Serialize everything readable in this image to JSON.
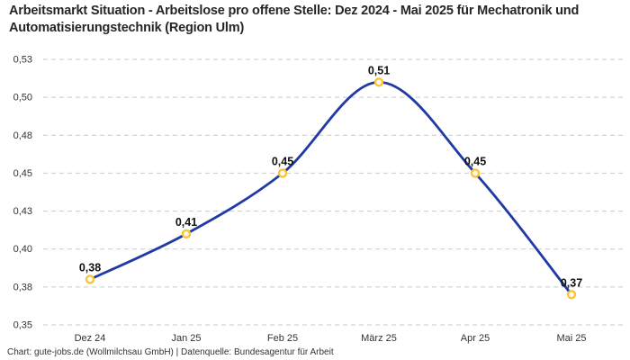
{
  "header": {
    "title": "Arbeitsmarkt Situation - Arbeitslose pro offene Stelle: Dez 2024 - Mai 2025 für Mechatronik und Automatisierungstechnik (Region Ulm)"
  },
  "footer": {
    "credit": "Chart: gute-jobs.de (Wollmilchsau GmbH) | Datenquelle: Bundesagentur für Arbeit"
  },
  "colors": {
    "line": "#1f3aa5",
    "marker_stroke": "#fdc331",
    "marker_fill": "#ffffff",
    "grid": "#c9c9c9",
    "axis_text": "#333333",
    "point_label_text": "#111111",
    "title_text": "#262626",
    "background": "#ffffff"
  },
  "chart_data": {
    "type": "line",
    "title": "Arbeitsmarkt Situation - Arbeitslose pro offene Stelle: Dez 2024 - Mai 2025 für Mechatronik und Automatisierungstechnik (Region Ulm)",
    "xlabel": "",
    "ylabel": "",
    "categories": [
      "Dez 24",
      "Jan 25",
      "Feb 25",
      "März 25",
      "Apr 25",
      "Mai 25"
    ],
    "values": [
      0.38,
      0.41,
      0.45,
      0.51,
      0.45,
      0.37
    ],
    "point_labels": [
      "0,38",
      "0,41",
      "0,45",
      "0,51",
      "0,45",
      "0,37"
    ],
    "ylim": [
      0.35,
      0.525
    ],
    "y_ticks": [
      {
        "value": 0.525,
        "label": "0,53"
      },
      {
        "value": 0.5,
        "label": "0,50"
      },
      {
        "value": 0.475,
        "label": "0,48"
      },
      {
        "value": 0.45,
        "label": "0,45"
      },
      {
        "value": 0.425,
        "label": "0,43"
      },
      {
        "value": 0.4,
        "label": "0,40"
      },
      {
        "value": 0.375,
        "label": "0,38"
      },
      {
        "value": 0.35,
        "label": "0,35"
      }
    ],
    "grid": "horizontal-dashed",
    "legend": "none",
    "line_style": "smooth",
    "marker": "open-circle"
  }
}
